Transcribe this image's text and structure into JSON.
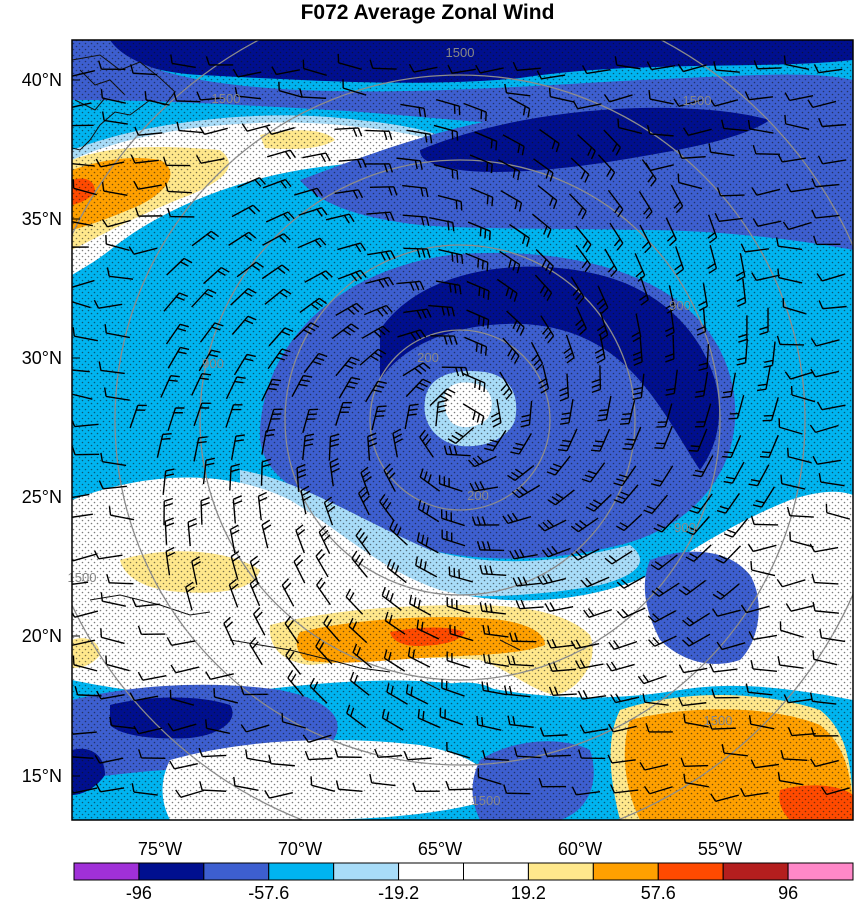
{
  "title": "F072 Average Zonal Wind",
  "map": {
    "lat_labels": [
      "40°N",
      "35°N",
      "30°N",
      "25°N",
      "20°N",
      "15°N"
    ],
    "lon_labels": [
      "75°W",
      "70°W",
      "65°W",
      "60°W",
      "55°W"
    ],
    "ring_labels": [
      "200",
      "200",
      "900",
      "900",
      "900",
      "1500",
      "1500",
      "1500",
      "1500",
      "1500",
      "1500"
    ]
  },
  "colorbar": {
    "colors": [
      "#a030d8",
      "#000f8f",
      "#3d5fd0",
      "#00b4f0",
      "#a8dcf8",
      "#ffffff",
      "#ffffff",
      "#ffe88c",
      "#ffa000",
      "#ff4a00",
      "#b41e1e",
      "#ff88c8"
    ],
    "labels": [
      "-96",
      "-57.6",
      "-19.2",
      "19.2",
      "57.6",
      "96"
    ]
  },
  "colors": {
    "deep": "#000f8f",
    "strong": "#3d5fd0",
    "medium": "#00b4f0",
    "light": "#a8dcf8",
    "neutral": "#ffffff",
    "pale_yellow": "#ffe88c",
    "orange": "#ffa000",
    "red_orange": "#ff4a00",
    "ring": "#8c8c8c"
  }
}
